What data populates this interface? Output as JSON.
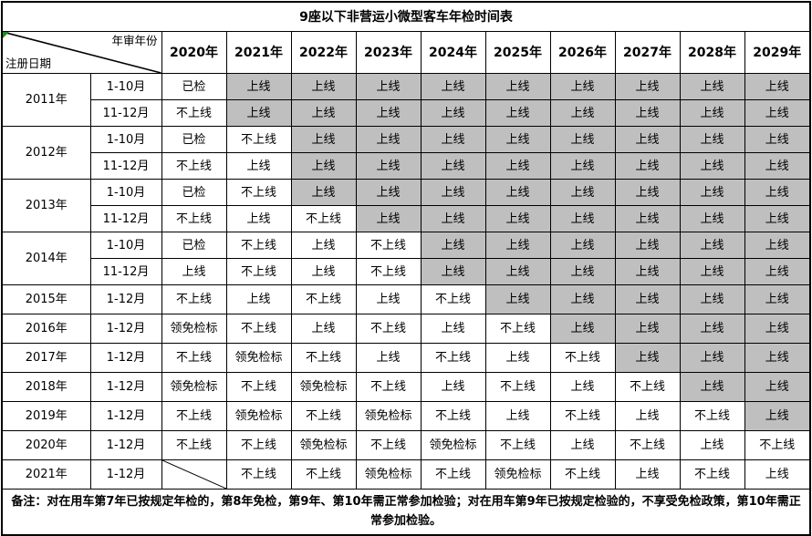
{
  "title": "9座以下非营运小微型客车年检时间表",
  "header": {
    "diagonal_top_label": "年审年份",
    "diagonal_bottom_label": "注册日期",
    "year_columns": [
      "2020年",
      "2021年",
      "2022年",
      "2023年",
      "2024年",
      "2025年",
      "2026年",
      "2027年",
      "2028年",
      "2029年"
    ]
  },
  "colors": {
    "shaded_cell": "#bfbfbf",
    "border": "#000000",
    "corner_marker": "#1f8a1f"
  },
  "cell_terms": {
    "shaded_meaning": "上线",
    "values_used": [
      "已检",
      "上线",
      "不上线",
      "领免检标"
    ]
  },
  "rows": [
    {
      "year": "2011年",
      "periods": [
        {
          "label": "1-10月",
          "cells": [
            {
              "t": "已检",
              "g": 0
            },
            {
              "t": "上线",
              "g": 1
            },
            {
              "t": "上线",
              "g": 1
            },
            {
              "t": "上线",
              "g": 1
            },
            {
              "t": "上线",
              "g": 1
            },
            {
              "t": "上线",
              "g": 1
            },
            {
              "t": "上线",
              "g": 1
            },
            {
              "t": "上线",
              "g": 1
            },
            {
              "t": "上线",
              "g": 1
            },
            {
              "t": "上线",
              "g": 1
            }
          ]
        },
        {
          "label": "11-12月",
          "cells": [
            {
              "t": "不上线",
              "g": 0
            },
            {
              "t": "上线",
              "g": 1
            },
            {
              "t": "上线",
              "g": 1
            },
            {
              "t": "上线",
              "g": 1
            },
            {
              "t": "上线",
              "g": 1
            },
            {
              "t": "上线",
              "g": 1
            },
            {
              "t": "上线",
              "g": 1
            },
            {
              "t": "上线",
              "g": 1
            },
            {
              "t": "上线",
              "g": 1
            },
            {
              "t": "上线",
              "g": 1
            }
          ]
        }
      ]
    },
    {
      "year": "2012年",
      "periods": [
        {
          "label": "1-10月",
          "cells": [
            {
              "t": "已检",
              "g": 0
            },
            {
              "t": "不上线",
              "g": 0
            },
            {
              "t": "上线",
              "g": 1
            },
            {
              "t": "上线",
              "g": 1
            },
            {
              "t": "上线",
              "g": 1
            },
            {
              "t": "上线",
              "g": 1
            },
            {
              "t": "上线",
              "g": 1
            },
            {
              "t": "上线",
              "g": 1
            },
            {
              "t": "上线",
              "g": 1
            },
            {
              "t": "上线",
              "g": 1
            }
          ]
        },
        {
          "label": "11-12月",
          "cells": [
            {
              "t": "不上线",
              "g": 0
            },
            {
              "t": "上线",
              "g": 0
            },
            {
              "t": "上线",
              "g": 1
            },
            {
              "t": "上线",
              "g": 1
            },
            {
              "t": "上线",
              "g": 1
            },
            {
              "t": "上线",
              "g": 1
            },
            {
              "t": "上线",
              "g": 1
            },
            {
              "t": "上线",
              "g": 1
            },
            {
              "t": "上线",
              "g": 1
            },
            {
              "t": "上线",
              "g": 1
            }
          ]
        }
      ]
    },
    {
      "year": "2013年",
      "periods": [
        {
          "label": "1-10月",
          "cells": [
            {
              "t": "已检",
              "g": 0
            },
            {
              "t": "不上线",
              "g": 0
            },
            {
              "t": "上线",
              "g": 1
            },
            {
              "t": "上线",
              "g": 1
            },
            {
              "t": "上线",
              "g": 1
            },
            {
              "t": "上线",
              "g": 1
            },
            {
              "t": "上线",
              "g": 1
            },
            {
              "t": "上线",
              "g": 1
            },
            {
              "t": "上线",
              "g": 1
            },
            {
              "t": "上线",
              "g": 1
            }
          ]
        },
        {
          "label": "11-12月",
          "cells": [
            {
              "t": "不上线",
              "g": 0
            },
            {
              "t": "上线",
              "g": 0
            },
            {
              "t": "不上线",
              "g": 0
            },
            {
              "t": "上线",
              "g": 1
            },
            {
              "t": "上线",
              "g": 1
            },
            {
              "t": "上线",
              "g": 1
            },
            {
              "t": "上线",
              "g": 1
            },
            {
              "t": "上线",
              "g": 1
            },
            {
              "t": "上线",
              "g": 1
            },
            {
              "t": "上线",
              "g": 1
            }
          ]
        }
      ]
    },
    {
      "year": "2014年",
      "periods": [
        {
          "label": "1-10月",
          "cells": [
            {
              "t": "已检",
              "g": 0
            },
            {
              "t": "不上线",
              "g": 0
            },
            {
              "t": "上线",
              "g": 0
            },
            {
              "t": "不上线",
              "g": 0
            },
            {
              "t": "上线",
              "g": 1
            },
            {
              "t": "上线",
              "g": 1
            },
            {
              "t": "上线",
              "g": 1
            },
            {
              "t": "上线",
              "g": 1
            },
            {
              "t": "上线",
              "g": 1
            },
            {
              "t": "上线",
              "g": 1
            }
          ]
        },
        {
          "label": "11-12月",
          "cells": [
            {
              "t": "上线",
              "g": 0
            },
            {
              "t": "不上线",
              "g": 0
            },
            {
              "t": "上线",
              "g": 0
            },
            {
              "t": "不上线",
              "g": 0
            },
            {
              "t": "上线",
              "g": 1
            },
            {
              "t": "上线",
              "g": 1
            },
            {
              "t": "上线",
              "g": 1
            },
            {
              "t": "上线",
              "g": 1
            },
            {
              "t": "上线",
              "g": 1
            },
            {
              "t": "上线",
              "g": 1
            }
          ]
        }
      ]
    },
    {
      "year": "2015年",
      "periods": [
        {
          "label": "1-12月",
          "cells": [
            {
              "t": "不上线",
              "g": 0
            },
            {
              "t": "上线",
              "g": 0
            },
            {
              "t": "不上线",
              "g": 0
            },
            {
              "t": "上线",
              "g": 0
            },
            {
              "t": "不上线",
              "g": 0
            },
            {
              "t": "上线",
              "g": 1
            },
            {
              "t": "上线",
              "g": 1
            },
            {
              "t": "上线",
              "g": 1
            },
            {
              "t": "上线",
              "g": 1
            },
            {
              "t": "上线",
              "g": 1
            }
          ]
        }
      ]
    },
    {
      "year": "2016年",
      "periods": [
        {
          "label": "1-12月",
          "cells": [
            {
              "t": "领免检标",
              "g": 0
            },
            {
              "t": "不上线",
              "g": 0
            },
            {
              "t": "上线",
              "g": 0
            },
            {
              "t": "不上线",
              "g": 0
            },
            {
              "t": "上线",
              "g": 0
            },
            {
              "t": "不上线",
              "g": 0
            },
            {
              "t": "上线",
              "g": 1
            },
            {
              "t": "上线",
              "g": 1
            },
            {
              "t": "上线",
              "g": 1
            },
            {
              "t": "上线",
              "g": 1
            }
          ]
        }
      ]
    },
    {
      "year": "2017年",
      "periods": [
        {
          "label": "1-12月",
          "cells": [
            {
              "t": "不上线",
              "g": 0
            },
            {
              "t": "领免检标",
              "g": 0
            },
            {
              "t": "不上线",
              "g": 0
            },
            {
              "t": "上线",
              "g": 0
            },
            {
              "t": "不上线",
              "g": 0
            },
            {
              "t": "上线",
              "g": 0
            },
            {
              "t": "不上线",
              "g": 0
            },
            {
              "t": "上线",
              "g": 1
            },
            {
              "t": "上线",
              "g": 1
            },
            {
              "t": "上线",
              "g": 1
            }
          ]
        }
      ]
    },
    {
      "year": "2018年",
      "periods": [
        {
          "label": "1-12月",
          "cells": [
            {
              "t": "领免检标",
              "g": 0
            },
            {
              "t": "不上线",
              "g": 0
            },
            {
              "t": "领免检标",
              "g": 0
            },
            {
              "t": "不上线",
              "g": 0
            },
            {
              "t": "上线",
              "g": 0
            },
            {
              "t": "不上线",
              "g": 0
            },
            {
              "t": "上线",
              "g": 0
            },
            {
              "t": "不上线",
              "g": 0
            },
            {
              "t": "上线",
              "g": 1
            },
            {
              "t": "上线",
              "g": 1
            }
          ]
        }
      ]
    },
    {
      "year": "2019年",
      "periods": [
        {
          "label": "1-12月",
          "cells": [
            {
              "t": "不上线",
              "g": 0
            },
            {
              "t": "领免检标",
              "g": 0
            },
            {
              "t": "不上线",
              "g": 0
            },
            {
              "t": "领免检标",
              "g": 0
            },
            {
              "t": "不上线",
              "g": 0
            },
            {
              "t": "上线",
              "g": 0
            },
            {
              "t": "不上线",
              "g": 0
            },
            {
              "t": "上线",
              "g": 0
            },
            {
              "t": "不上线",
              "g": 0
            },
            {
              "t": "上线",
              "g": 1
            }
          ]
        }
      ]
    },
    {
      "year": "2020年",
      "periods": [
        {
          "label": "1-12月",
          "cells": [
            {
              "t": "不上线",
              "g": 0
            },
            {
              "t": "不上线",
              "g": 0
            },
            {
              "t": "领免检标",
              "g": 0
            },
            {
              "t": "不上线",
              "g": 0
            },
            {
              "t": "领免检标",
              "g": 0
            },
            {
              "t": "不上线",
              "g": 0
            },
            {
              "t": "上线",
              "g": 0
            },
            {
              "t": "不上线",
              "g": 0
            },
            {
              "t": "上线",
              "g": 0
            },
            {
              "t": "不上线",
              "g": 0
            }
          ]
        }
      ]
    },
    {
      "year": "2021年",
      "periods": [
        {
          "label": "1-12月",
          "cells": [
            {
              "t": "",
              "g": 0,
              "slash": 1
            },
            {
              "t": "不上线",
              "g": 0
            },
            {
              "t": "不上线",
              "g": 0
            },
            {
              "t": "领免检标",
              "g": 0
            },
            {
              "t": "不上线",
              "g": 0
            },
            {
              "t": "领免检标",
              "g": 0
            },
            {
              "t": "不上线",
              "g": 0
            },
            {
              "t": "上线",
              "g": 0
            },
            {
              "t": "不上线",
              "g": 0
            },
            {
              "t": "上线",
              "g": 0
            }
          ]
        }
      ]
    }
  ],
  "footnote": "备注：对在用车第7年已按规定年检的，第8年免检，第9年、第10年需正常参加检验；对在用车第9年已按规定检验的，不享受免检政策，第10年需正常参加检验。"
}
